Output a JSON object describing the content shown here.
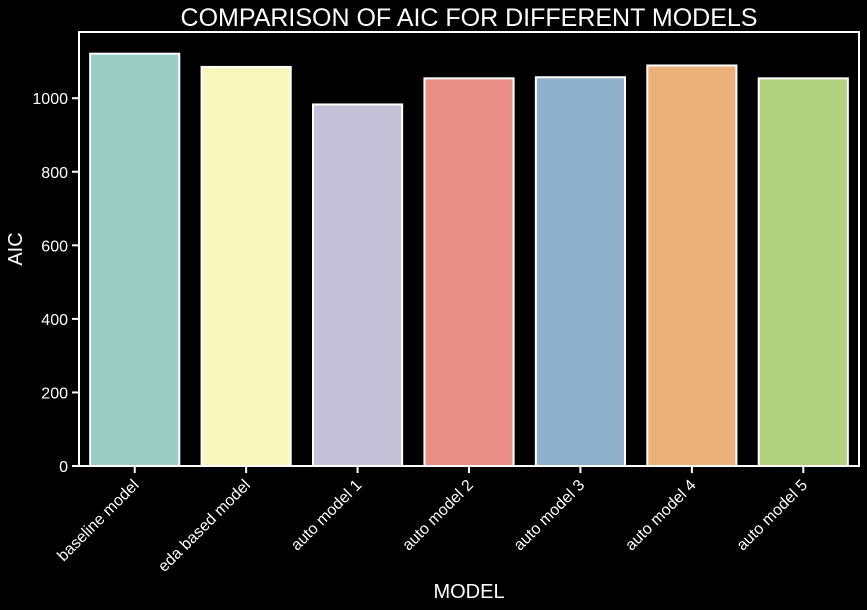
{
  "chart_data": {
    "type": "bar",
    "title": "COMPARISON OF AIC FOR DIFFERENT MODELS",
    "xlabel": "MODEL",
    "ylabel": "AIC",
    "categories": [
      "baseline model",
      "eda based model",
      "auto model 1",
      "auto model 2",
      "auto model 3",
      "auto model 4",
      "auto model 5"
    ],
    "values": [
      1121,
      1085,
      983,
      1054,
      1057,
      1089,
      1054
    ],
    "ylim": [
      0,
      1180
    ],
    "yticks": [
      0,
      200,
      400,
      600,
      800,
      1000
    ],
    "grid": false,
    "colors": [
      "#9ACCC4",
      "#F7F7BC",
      "#C4C0D7",
      "#E98D87",
      "#8FB1CB",
      "#EAB278",
      "#B2D17E"
    ],
    "background": "#000000",
    "foreground": "#ffffff"
  }
}
